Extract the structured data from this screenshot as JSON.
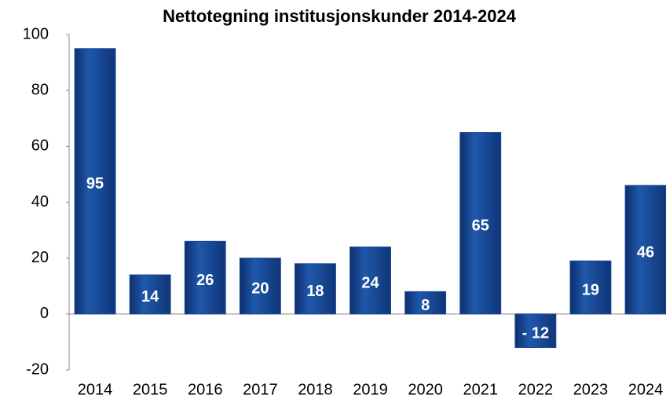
{
  "chart_data": {
    "type": "bar",
    "title": "Nettotegning institusjonskunder 2014-2024",
    "categories": [
      "2014",
      "2015",
      "2016",
      "2017",
      "2018",
      "2019",
      "2020",
      "2021",
      "2022",
      "2023",
      "2024"
    ],
    "values": [
      95,
      14,
      26,
      20,
      18,
      24,
      8,
      65,
      -12,
      19,
      46
    ],
    "value_labels": [
      "95",
      "14",
      "26",
      "20",
      "18",
      "24",
      "8",
      "65",
      "- 12",
      "19",
      "46"
    ],
    "color": "#1a4a96",
    "ylim": [
      -20,
      100
    ],
    "yticks": [
      -20,
      0,
      20,
      40,
      60,
      80,
      100
    ],
    "grid": false
  }
}
